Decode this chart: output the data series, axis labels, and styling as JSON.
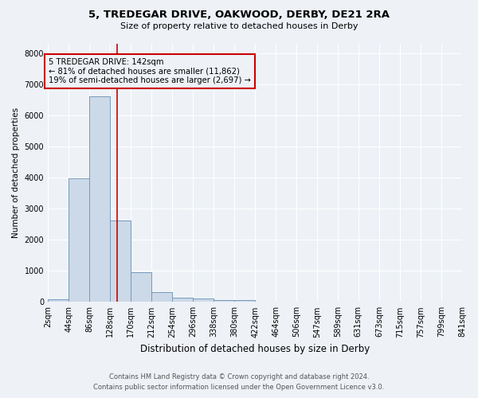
{
  "title": "5, TREDEGAR DRIVE, OAKWOOD, DERBY, DE21 2RA",
  "subtitle": "Size of property relative to detached houses in Derby",
  "xlabel": "Distribution of detached houses by size in Derby",
  "ylabel": "Number of detached properties",
  "bar_color": "#ccd9e8",
  "bar_edge_color": "#7799bb",
  "background_color": "#eef2f7",
  "annotation_box_color": "#cc0000",
  "vline_color": "#cc0000",
  "vline_x": 142,
  "annotation_title": "5 TREDEGAR DRIVE: 142sqm",
  "annotation_line1": "← 81% of detached houses are smaller (11,862)",
  "annotation_line2": "19% of semi-detached houses are larger (2,697) →",
  "footer_line1": "Contains HM Land Registry data © Crown copyright and database right 2024.",
  "footer_line2": "Contains public sector information licensed under the Open Government Licence v3.0.",
  "bin_edges": [
    2,
    44,
    86,
    128,
    170,
    212,
    254,
    296,
    338,
    380,
    422,
    464,
    506,
    547,
    589,
    631,
    673,
    715,
    757,
    799,
    841
  ],
  "bar_heights": [
    75,
    3980,
    6600,
    2620,
    960,
    310,
    130,
    105,
    65,
    50,
    0,
    0,
    0,
    0,
    0,
    0,
    0,
    0,
    0,
    0
  ],
  "ylim": [
    0,
    8300
  ],
  "yticks": [
    0,
    1000,
    2000,
    3000,
    4000,
    5000,
    6000,
    7000,
    8000
  ]
}
